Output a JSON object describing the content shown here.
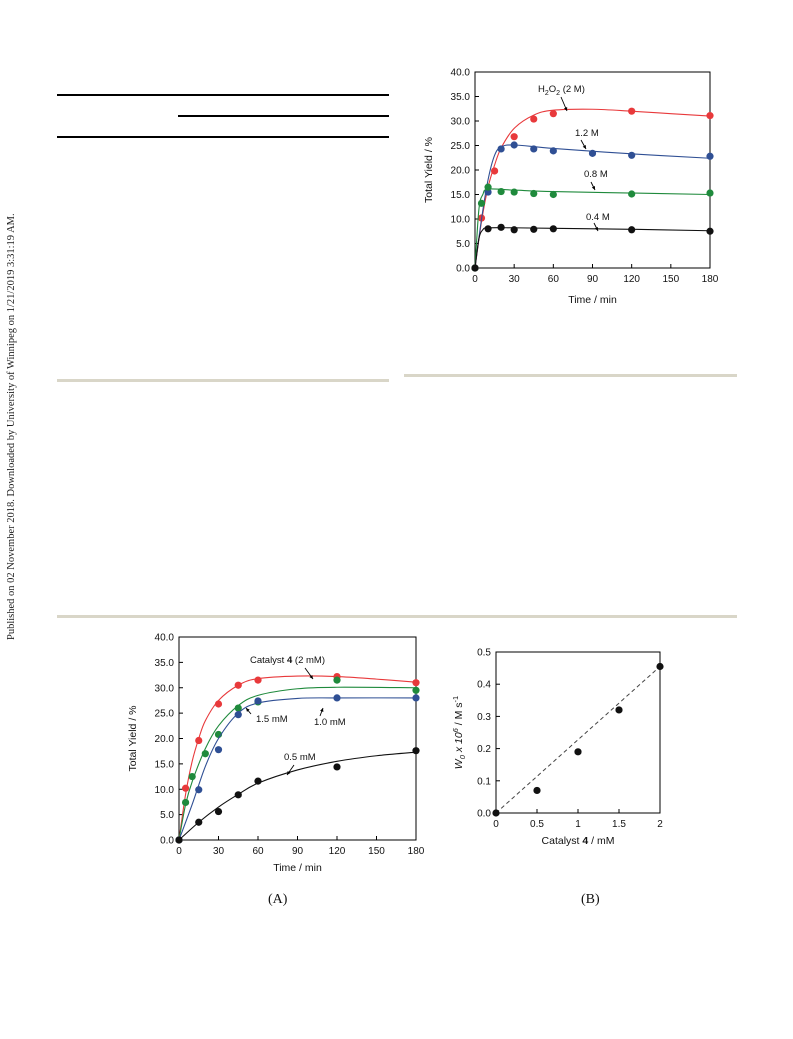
{
  "side_note": "Published on 02 November 2018. Downloaded by University of Winnipeg on 1/21/2019 3:31:19 AM.",
  "captions": {
    "a": "(A)",
    "b": "(B)"
  },
  "chart_data": [
    {
      "id": "top",
      "type": "line",
      "title": "",
      "xlabel": "Time / min",
      "ylabel": "Total Yield / %",
      "xlim": [
        0,
        180
      ],
      "ylim": [
        0,
        40
      ],
      "xticks": [
        0,
        30,
        60,
        90,
        120,
        150,
        180
      ],
      "yticks": [
        0.0,
        5.0,
        10.0,
        15.0,
        20.0,
        25.0,
        30.0,
        35.0,
        40.0
      ],
      "series": [
        {
          "name": "H2O2 (2 M)",
          "color": "#e8393b",
          "x": [
            0,
            5,
            15,
            30,
            45,
            60,
            120,
            180
          ],
          "y": [
            0,
            10.2,
            19.8,
            26.8,
            30.4,
            31.5,
            32.0,
            31.1
          ],
          "curve": [
            [
              0,
              0
            ],
            [
              5,
              9.5
            ],
            [
              10,
              16.5
            ],
            [
              15,
              21
            ],
            [
              20,
              24.5
            ],
            [
              30,
              28.5
            ],
            [
              45,
              31.2
            ],
            [
              60,
              32.2
            ],
            [
              90,
              32.4
            ],
            [
              120,
              32.0
            ],
            [
              150,
              31.5
            ],
            [
              180,
              31.0
            ]
          ]
        },
        {
          "name": "1.2 M",
          "color": "#2f4f94",
          "x": [
            0,
            10,
            20,
            30,
            45,
            60,
            90,
            120,
            180
          ],
          "y": [
            0,
            15.5,
            24.3,
            25.1,
            24.3,
            23.9,
            23.4,
            23.0,
            22.8
          ],
          "curve": [
            [
              0,
              0
            ],
            [
              5,
              10
            ],
            [
              10,
              18
            ],
            [
              15,
              23
            ],
            [
              20,
              24.7
            ],
            [
              30,
              25.1
            ],
            [
              60,
              24.4
            ],
            [
              120,
              23.3
            ],
            [
              180,
              22.4
            ]
          ]
        },
        {
          "name": "0.8 M",
          "color": "#1f8a3c",
          "x": [
            0,
            5,
            10,
            20,
            30,
            45,
            60,
            120,
            180
          ],
          "y": [
            0,
            13.2,
            16.5,
            15.6,
            15.5,
            15.2,
            15.0,
            15.1,
            15.3
          ],
          "curve": [
            [
              0,
              0
            ],
            [
              3,
              12
            ],
            [
              6,
              15
            ],
            [
              10,
              16.1
            ],
            [
              30,
              15.9
            ],
            [
              60,
              15.6
            ],
            [
              120,
              15.3
            ],
            [
              180,
              15.0
            ]
          ]
        },
        {
          "name": "0.4 M",
          "color": "#111111",
          "x": [
            0,
            10,
            20,
            30,
            45,
            60,
            120,
            180
          ],
          "y": [
            0,
            8.0,
            8.3,
            7.8,
            7.9,
            8.0,
            7.8,
            7.5
          ],
          "curve": [
            [
              0,
              0
            ],
            [
              3,
              6
            ],
            [
              6,
              7.8
            ],
            [
              10,
              8.2
            ],
            [
              30,
              8.2
            ],
            [
              60,
              8.1
            ],
            [
              120,
              7.9
            ],
            [
              180,
              7.6
            ]
          ]
        }
      ],
      "annotations": [
        {
          "kind": "h2o2",
          "pre": "H",
          "sub1": "2",
          "mid": "O",
          "sub2": "2",
          "post": " (2 M)"
        },
        {
          "kind": "plain",
          "label": "1.2 M"
        },
        {
          "kind": "plain",
          "label": "0.8 M"
        },
        {
          "kind": "plain",
          "label": "0.4 M"
        }
      ]
    },
    {
      "id": "A",
      "type": "line",
      "title": "",
      "xlabel": "Time / min",
      "ylabel": "Total Yield / %",
      "xlim": [
        0,
        180
      ],
      "ylim": [
        0,
        40
      ],
      "xticks": [
        0,
        30,
        60,
        90,
        120,
        150,
        180
      ],
      "yticks": [
        0.0,
        5.0,
        10.0,
        15.0,
        20.0,
        25.0,
        30.0,
        35.0,
        40.0
      ],
      "series": [
        {
          "name": "Catalyst 4 (2 mM)",
          "color": "#e8393b",
          "x": [
            0,
            5,
            15,
            30,
            45,
            60,
            120,
            180
          ],
          "y": [
            0,
            10.2,
            19.6,
            26.8,
            30.5,
            31.5,
            32.2,
            31.0
          ],
          "curve": [
            [
              0,
              0
            ],
            [
              5,
              9
            ],
            [
              10,
              15.5
            ],
            [
              15,
              20
            ],
            [
              20,
              23.5
            ],
            [
              30,
              27.5
            ],
            [
              45,
              30.5
            ],
            [
              60,
              31.8
            ],
            [
              90,
              32.3
            ],
            [
              120,
              32.2
            ],
            [
              150,
              31.7
            ],
            [
              180,
              31.1
            ]
          ]
        },
        {
          "name": "1.5 mM",
          "color": "#1f8a3c",
          "x": [
            0,
            5,
            10,
            20,
            30,
            45,
            60,
            120,
            180
          ],
          "y": [
            0,
            7.4,
            12.5,
            17.0,
            20.8,
            26.0,
            27.2,
            31.5,
            29.5
          ],
          "curve": [
            [
              0,
              0
            ],
            [
              5,
              7
            ],
            [
              10,
              11.5
            ],
            [
              20,
              18
            ],
            [
              30,
              22.5
            ],
            [
              45,
              26.5
            ],
            [
              60,
              28.5
            ],
            [
              90,
              29.8
            ],
            [
              120,
              30.1
            ],
            [
              180,
              30.0
            ]
          ]
        },
        {
          "name": "1.0 mM",
          "color": "#2f4f94",
          "x": [
            0,
            15,
            30,
            45,
            60,
            120,
            180
          ],
          "y": [
            0,
            9.9,
            17.8,
            24.7,
            27.4,
            28.0,
            28.0
          ],
          "curve": [
            [
              0,
              0
            ],
            [
              10,
              7
            ],
            [
              20,
              14.5
            ],
            [
              30,
              20
            ],
            [
              45,
              25
            ],
            [
              60,
              27
            ],
            [
              90,
              27.9
            ],
            [
              120,
              28.0
            ],
            [
              180,
              28.0
            ]
          ]
        },
        {
          "name": "0.5 mM",
          "color": "#111111",
          "x": [
            0,
            15,
            30,
            45,
            60,
            120,
            180
          ],
          "y": [
            0,
            3.5,
            5.6,
            8.9,
            11.6,
            14.4,
            17.6
          ],
          "curve": [
            [
              0,
              0
            ],
            [
              15,
              3.5
            ],
            [
              30,
              6.5
            ],
            [
              45,
              9
            ],
            [
              60,
              11.2
            ],
            [
              90,
              13.8
            ],
            [
              120,
              15.5
            ],
            [
              150,
              16.6
            ],
            [
              180,
              17.3
            ]
          ]
        }
      ],
      "annotations": [
        {
          "kind": "catalyst",
          "pre": "Catalyst ",
          "bold": "4",
          "post": " (2 mM)"
        },
        {
          "kind": "plain",
          "label": "1.5 mM"
        },
        {
          "kind": "plain",
          "label": "1.0 mM"
        },
        {
          "kind": "plain",
          "label": "0.5 mM"
        }
      ]
    },
    {
      "id": "B",
      "type": "scatter",
      "title": "",
      "xlabel_pre": "Catalyst ",
      "xlabel_bold": "4",
      "xlabel_post": " / mM",
      "ylabel_parts": {
        "W": "W",
        "sub": "0",
        "times": " x 10",
        "sup": "6",
        "unit": " / M s",
        "unit_sup": "-1"
      },
      "xlim": [
        0,
        2
      ],
      "ylim": [
        0,
        0.5
      ],
      "xticks": [
        0,
        0.5,
        1,
        1.5,
        2
      ],
      "xtick_labels": [
        "0",
        "0.5",
        "1",
        "1.5",
        "2"
      ],
      "yticks": [
        0.0,
        0.1,
        0.2,
        0.3,
        0.4,
        0.5
      ],
      "points": {
        "x": [
          0,
          0.5,
          1.0,
          1.5,
          2.0
        ],
        "y": [
          0.0,
          0.07,
          0.19,
          0.32,
          0.455
        ]
      },
      "fit_line": {
        "x": [
          0,
          2
        ],
        "y": [
          0,
          0.455
        ],
        "style": "dashed"
      }
    }
  ]
}
